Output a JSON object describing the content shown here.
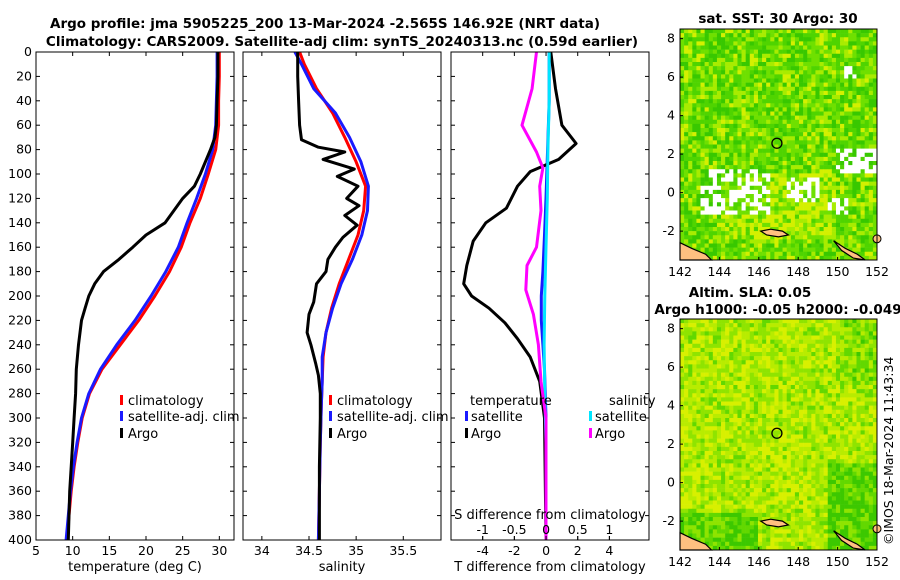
{
  "titles": {
    "line1": "Argo profile: jma 5905225_200 13-Mar-2024 -2.565S 146.92E (NRT data)",
    "line2": "Climatology: CARS2009. Satellite-adj clim: synTS_20240313.nc (0.59d earlier)",
    "sst_title": "sat. SST: 30 Argo: 30",
    "sla_title1": "Altim. SLA: 0.05",
    "sla_title2": "Argo h1000: -0.05 h2000: -0.049",
    "timestamp": "©IMOS 18-Mar-2024 11:43:34"
  },
  "colors": {
    "climatology": "#ff0000",
    "satellite": "#1a1aff",
    "argo": "#000000",
    "argo_sal_diff": "#ff00ff",
    "sat_sal_diff": "#00e5ff"
  },
  "chart_data": [
    {
      "type": "line",
      "id": "temperature",
      "xlabel": "temperature (deg C)",
      "ylabel": "",
      "xlim": [
        5,
        32
      ],
      "ylim": [
        400,
        0
      ],
      "xticks": [
        5,
        10,
        15,
        20,
        25,
        30
      ],
      "yticks": [
        0,
        20,
        40,
        60,
        80,
        100,
        120,
        140,
        160,
        180,
        200,
        220,
        240,
        260,
        280,
        300,
        320,
        340,
        360,
        380,
        400
      ],
      "legend": [
        "climatology",
        "satellite-adj. clim",
        "Argo"
      ],
      "series": [
        {
          "name": "climatology",
          "color": "#ff0000",
          "points": [
            [
              30.0,
              0
            ],
            [
              30.0,
              20
            ],
            [
              29.9,
              40
            ],
            [
              29.9,
              60
            ],
            [
              29.5,
              80
            ],
            [
              28.5,
              100
            ],
            [
              27.4,
              120
            ],
            [
              26.0,
              140
            ],
            [
              24.8,
              160
            ],
            [
              23.2,
              180
            ],
            [
              21.2,
              200
            ],
            [
              19.0,
              220
            ],
            [
              16.5,
              240
            ],
            [
              14.0,
              260
            ],
            [
              12.3,
              280
            ],
            [
              11.3,
              300
            ],
            [
              10.7,
              320
            ],
            [
              10.2,
              340
            ],
            [
              9.8,
              360
            ],
            [
              9.5,
              380
            ],
            [
              9.2,
              400
            ]
          ]
        },
        {
          "name": "satellite-adj. clim",
          "color": "#1a1aff",
          "points": [
            [
              29.7,
              0
            ],
            [
              29.7,
              20
            ],
            [
              29.6,
              40
            ],
            [
              29.5,
              60
            ],
            [
              29.1,
              80
            ],
            [
              28.1,
              100
            ],
            [
              26.9,
              120
            ],
            [
              25.6,
              140
            ],
            [
              24.4,
              160
            ],
            [
              22.7,
              180
            ],
            [
              20.7,
              200
            ],
            [
              18.5,
              220
            ],
            [
              16.0,
              240
            ],
            [
              13.8,
              260
            ],
            [
              12.2,
              280
            ],
            [
              11.2,
              300
            ],
            [
              10.6,
              320
            ],
            [
              10.1,
              340
            ],
            [
              9.7,
              360
            ],
            [
              9.4,
              380
            ],
            [
              9.1,
              400
            ]
          ]
        },
        {
          "name": "Argo",
          "color": "#000000",
          "points": [
            [
              29.8,
              0
            ],
            [
              29.8,
              20
            ],
            [
              29.7,
              40
            ],
            [
              29.6,
              60
            ],
            [
              29.4,
              70
            ],
            [
              28.8,
              80
            ],
            [
              27.4,
              100
            ],
            [
              26.6,
              110
            ],
            [
              25.0,
              120
            ],
            [
              22.6,
              140
            ],
            [
              20.0,
              150
            ],
            [
              18.2,
              160
            ],
            [
              16.3,
              170
            ],
            [
              14.2,
              180
            ],
            [
              13.0,
              190
            ],
            [
              12.2,
              200
            ],
            [
              11.7,
              210
            ],
            [
              11.2,
              220
            ],
            [
              10.8,
              240
            ],
            [
              10.5,
              260
            ],
            [
              10.4,
              280
            ],
            [
              10.2,
              300
            ],
            [
              10.0,
              320
            ],
            [
              9.8,
              340
            ],
            [
              9.6,
              360
            ],
            [
              9.5,
              380
            ],
            [
              9.4,
              400
            ]
          ]
        }
      ]
    },
    {
      "type": "line",
      "id": "salinity",
      "xlabel": "salinity",
      "xlim": [
        33.8,
        35.9
      ],
      "ylim": [
        400,
        0
      ],
      "xticks": [
        34,
        34.5,
        35,
        35.5
      ],
      "legend": [
        "climatology",
        "satellite-adj. clim",
        "Argo"
      ],
      "series": [
        {
          "name": "climatology",
          "color": "#ff0000",
          "points": [
            [
              34.4,
              0
            ],
            [
              34.45,
              10
            ],
            [
              34.58,
              30
            ],
            [
              34.75,
              50
            ],
            [
              34.88,
              70
            ],
            [
              35.0,
              90
            ],
            [
              35.1,
              110
            ],
            [
              35.08,
              130
            ],
            [
              35.02,
              150
            ],
            [
              34.92,
              170
            ],
            [
              34.82,
              190
            ],
            [
              34.74,
              210
            ],
            [
              34.68,
              230
            ],
            [
              34.65,
              250
            ],
            [
              34.64,
              270
            ],
            [
              34.63,
              290
            ],
            [
              34.62,
              320
            ],
            [
              34.61,
              360
            ],
            [
              34.6,
              400
            ]
          ]
        },
        {
          "name": "satellite-adj. clim",
          "color": "#1a1aff",
          "points": [
            [
              34.35,
              0
            ],
            [
              34.42,
              10
            ],
            [
              34.55,
              30
            ],
            [
              34.78,
              50
            ],
            [
              34.93,
              70
            ],
            [
              35.05,
              90
            ],
            [
              35.13,
              110
            ],
            [
              35.12,
              130
            ],
            [
              35.06,
              150
            ],
            [
              34.96,
              170
            ],
            [
              34.84,
              190
            ],
            [
              34.75,
              210
            ],
            [
              34.68,
              230
            ],
            [
              34.64,
              250
            ],
            [
              34.64,
              270
            ],
            [
              34.63,
              290
            ],
            [
              34.62,
              320
            ],
            [
              34.61,
              360
            ],
            [
              34.6,
              400
            ]
          ]
        },
        {
          "name": "Argo",
          "color": "#000000",
          "points": [
            [
              34.38,
              0
            ],
            [
              34.38,
              20
            ],
            [
              34.39,
              40
            ],
            [
              34.4,
              60
            ],
            [
              34.42,
              72
            ],
            [
              34.6,
              78
            ],
            [
              34.88,
              82
            ],
            [
              34.65,
              88
            ],
            [
              34.98,
              96
            ],
            [
              34.8,
              102
            ],
            [
              35.02,
              110
            ],
            [
              34.9,
              120
            ],
            [
              35.03,
              126
            ],
            [
              34.88,
              134
            ],
            [
              35.01,
              142
            ],
            [
              34.86,
              152
            ],
            [
              34.78,
              160
            ],
            [
              34.7,
              170
            ],
            [
              34.68,
              180
            ],
            [
              34.58,
              190
            ],
            [
              34.55,
              205
            ],
            [
              34.5,
              215
            ],
            [
              34.48,
              230
            ],
            [
              34.52,
              240
            ],
            [
              34.57,
              255
            ],
            [
              34.6,
              265
            ],
            [
              34.62,
              280
            ],
            [
              34.62,
              300
            ],
            [
              34.61,
              340
            ],
            [
              34.61,
              400
            ]
          ]
        }
      ]
    },
    {
      "type": "line",
      "id": "difference",
      "xlabel": "T difference from climatology",
      "xlabel2": "S difference from climatology",
      "xlim": [
        -6,
        6.5
      ],
      "x2lim": [
        -1.5,
        1.625
      ],
      "ylim": [
        400,
        0
      ],
      "xticks": [
        -4,
        -2,
        0,
        2,
        4
      ],
      "x2ticks": [
        -1,
        -0.5,
        0,
        0.5,
        1
      ],
      "legend_temperature_title": "temperature",
      "legend_salinity_title": "salinity",
      "legend": [
        "satellite",
        "Argo",
        "satellite",
        "Argo"
      ],
      "series": [
        {
          "name": "satellite",
          "group": "temperature",
          "color": "#1a1aff",
          "axis": "T",
          "points": [
            [
              0.2,
              0
            ],
            [
              0.2,
              40
            ],
            [
              0.1,
              80
            ],
            [
              0.0,
              120
            ],
            [
              -0.1,
              150
            ],
            [
              -0.2,
              180
            ],
            [
              -0.3,
              200
            ],
            [
              -0.3,
              220
            ],
            [
              -0.2,
              240
            ],
            [
              -0.1,
              260
            ],
            [
              0.0,
              300
            ],
            [
              0.0,
              400
            ]
          ]
        },
        {
          "name": "Argo",
          "group": "temperature",
          "color": "#000000",
          "axis": "T",
          "points": [
            [
              0.3,
              0
            ],
            [
              0.6,
              30
            ],
            [
              1.0,
              60
            ],
            [
              1.9,
              75
            ],
            [
              0.8,
              88
            ],
            [
              -1.0,
              98
            ],
            [
              -1.8,
              110
            ],
            [
              -2.5,
              128
            ],
            [
              -3.8,
              140
            ],
            [
              -4.6,
              155
            ],
            [
              -5.0,
              175
            ],
            [
              -5.2,
              190
            ],
            [
              -4.7,
              200
            ],
            [
              -3.6,
              210
            ],
            [
              -2.6,
              222
            ],
            [
              -1.8,
              235
            ],
            [
              -1.0,
              250
            ],
            [
              -0.4,
              270
            ],
            [
              -0.1,
              300
            ],
            [
              0.0,
              400
            ]
          ]
        },
        {
          "name": "satellite",
          "group": "salinity",
          "color": "#00e5ff",
          "axis": "S",
          "points": [
            [
              0.05,
              0
            ],
            [
              0.05,
              40
            ],
            [
              0.03,
              80
            ],
            [
              0.02,
              120
            ],
            [
              0.0,
              160
            ],
            [
              -0.02,
              200
            ],
            [
              -0.03,
              240
            ],
            [
              -0.02,
              280
            ],
            [
              0.0,
              320
            ],
            [
              0.0,
              400
            ]
          ]
        },
        {
          "name": "Argo",
          "group": "salinity",
          "color": "#ff00ff",
          "axis": "S",
          "points": [
            [
              -0.15,
              0
            ],
            [
              -0.22,
              30
            ],
            [
              -0.38,
              60
            ],
            [
              -0.15,
              82
            ],
            [
              -0.05,
              95
            ],
            [
              -0.1,
              110
            ],
            [
              -0.08,
              130
            ],
            [
              -0.15,
              160
            ],
            [
              -0.3,
              175
            ],
            [
              -0.32,
              195
            ],
            [
              -0.2,
              215
            ],
            [
              -0.12,
              240
            ],
            [
              -0.08,
              270
            ],
            [
              0.0,
              300
            ],
            [
              0.0,
              400
            ]
          ]
        }
      ]
    },
    {
      "type": "heatmap",
      "id": "sst_map",
      "title": "sat. SST: 30 Argo: 30",
      "xlim": [
        142,
        152
      ],
      "ylim": [
        -3.5,
        8.5
      ],
      "xticks": [
        142,
        144,
        146,
        148,
        150,
        152
      ],
      "yticks": [
        -2,
        0,
        2,
        4,
        6,
        8
      ],
      "marker": [
        146.92,
        2.565
      ]
    },
    {
      "type": "heatmap",
      "id": "sla_map",
      "title": "Altim. SLA: 0.05",
      "subtitle": "Argo h1000: -0.05 h2000: -0.049",
      "xlim": [
        142,
        152
      ],
      "ylim": [
        -3.5,
        8.5
      ],
      "xticks": [
        142,
        144,
        146,
        148,
        150,
        152
      ],
      "yticks": [
        -2,
        0,
        2,
        4,
        6,
        8
      ],
      "marker": [
        146.92,
        2.565
      ]
    }
  ]
}
